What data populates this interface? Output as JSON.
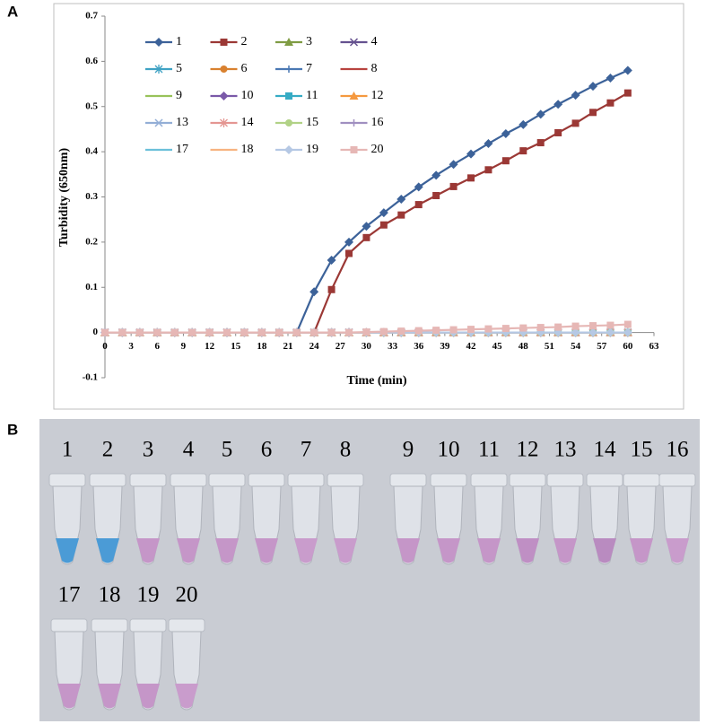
{
  "chart_data": {
    "type": "line",
    "panel_label": "A",
    "x_label": "Time (min)",
    "y_label": "Turbidity (650nm)",
    "x": [
      0,
      2,
      4,
      6,
      8,
      10,
      12,
      14,
      16,
      18,
      20,
      22,
      24,
      26,
      28,
      30,
      32,
      34,
      36,
      38,
      40,
      42,
      44,
      46,
      48,
      50,
      52,
      54,
      56,
      58,
      60
    ],
    "xlim": [
      0,
      63
    ],
    "xticks": [
      0,
      3,
      6,
      9,
      12,
      15,
      18,
      21,
      24,
      27,
      30,
      33,
      36,
      39,
      42,
      45,
      48,
      51,
      54,
      57,
      60,
      63
    ],
    "ylim": [
      -0.1,
      0.7
    ],
    "yticks": [
      -0.1,
      0,
      0.1,
      0.2,
      0.3,
      0.4,
      0.5,
      0.6,
      0.7
    ],
    "series": [
      {
        "name": "1",
        "color": "#3c6299",
        "marker": "diamond",
        "values": [
          0,
          0,
          0,
          0,
          0,
          0,
          0,
          0,
          0,
          0,
          0,
          0,
          0.09,
          0.16,
          0.2,
          0.235,
          0.265,
          0.295,
          0.322,
          0.348,
          0.372,
          0.395,
          0.418,
          0.44,
          0.46,
          0.483,
          0.505,
          0.525,
          0.545,
          0.563,
          0.58
        ]
      },
      {
        "name": "2",
        "color": "#9b3835",
        "marker": "square",
        "values": [
          0,
          0,
          0,
          0,
          0,
          0,
          0,
          0,
          0,
          0,
          0,
          0,
          0,
          0.095,
          0.175,
          0.21,
          0.238,
          0.26,
          0.283,
          0.303,
          0.323,
          0.342,
          0.36,
          0.38,
          0.402,
          0.42,
          0.442,
          0.463,
          0.487,
          0.508,
          0.53
        ]
      },
      {
        "name": "3",
        "color": "#7f9c43",
        "marker": "triangle",
        "values": [
          0,
          0,
          0,
          0,
          0,
          0,
          0,
          0,
          0,
          0,
          0,
          0,
          0,
          0,
          0,
          0,
          0,
          0,
          0,
          0,
          0,
          0,
          0,
          0,
          0,
          0,
          0,
          0,
          0,
          0,
          0
        ]
      },
      {
        "name": "4",
        "color": "#65518f",
        "marker": "x",
        "values": [
          0,
          0,
          0,
          0,
          0,
          0,
          0,
          0,
          0,
          0,
          0,
          0,
          0,
          0,
          0,
          0,
          0,
          0,
          0,
          0,
          0,
          0,
          0,
          0,
          0,
          0,
          0,
          0,
          0,
          0,
          0
        ]
      },
      {
        "name": "5",
        "color": "#3fa2c4",
        "marker": "star",
        "values": [
          0,
          0,
          0,
          0,
          0,
          0,
          0,
          0,
          0,
          0,
          0,
          0,
          0,
          0,
          0,
          0,
          0,
          0,
          0,
          0,
          0,
          0,
          0,
          0,
          0,
          0,
          0,
          0,
          0,
          0,
          0
        ]
      },
      {
        "name": "6",
        "color": "#d9812f",
        "marker": "circle",
        "values": [
          0,
          0,
          0,
          0,
          0,
          0,
          0,
          0,
          0,
          0,
          0,
          0,
          0,
          0,
          0,
          0,
          0,
          0,
          0,
          0,
          0,
          0,
          0,
          0,
          0,
          0,
          0,
          0,
          0,
          0,
          0
        ]
      },
      {
        "name": "7",
        "color": "#4a78b3",
        "marker": "plus",
        "values": [
          0,
          0,
          0,
          0,
          0,
          0,
          0,
          0,
          0,
          0,
          0,
          0,
          0,
          0,
          0,
          0,
          0,
          0,
          0,
          0,
          0,
          0,
          0,
          0,
          0,
          0,
          0,
          0,
          0,
          0,
          0
        ]
      },
      {
        "name": "8",
        "color": "#b8433f",
        "marker": "none",
        "values": [
          0,
          0,
          0,
          0,
          0,
          0,
          0,
          0,
          0,
          0,
          0,
          0,
          0,
          0,
          0,
          0,
          0,
          0,
          0,
          0,
          0,
          0,
          0,
          0,
          0,
          0,
          0,
          0,
          0,
          0,
          0
        ]
      },
      {
        "name": "9",
        "color": "#98c25a",
        "marker": "none",
        "values": [
          0,
          0,
          0,
          0,
          0,
          0,
          0,
          0,
          0,
          0,
          0,
          0,
          0,
          0,
          0,
          0,
          0,
          0,
          0,
          0,
          0,
          0,
          0,
          0,
          0,
          0,
          0,
          0,
          0,
          0,
          0
        ]
      },
      {
        "name": "10",
        "color": "#7a59a8",
        "marker": "diamond",
        "values": [
          0,
          0,
          0,
          0,
          0,
          0,
          0,
          0,
          0,
          0,
          0,
          0,
          0,
          0,
          0,
          0,
          0,
          0,
          0,
          0,
          0,
          0,
          0,
          0,
          0,
          0,
          0,
          0,
          0,
          0,
          0
        ]
      },
      {
        "name": "11",
        "color": "#36abc4",
        "marker": "square",
        "values": [
          0,
          0,
          0,
          0,
          0,
          0,
          0,
          0,
          0,
          0,
          0,
          0,
          0,
          0,
          0,
          0,
          0,
          0,
          0,
          0,
          0,
          0,
          0,
          0,
          0,
          0,
          0,
          0,
          0,
          0,
          0
        ]
      },
      {
        "name": "12",
        "color": "#f5993f",
        "marker": "triangle",
        "values": [
          0,
          0,
          0,
          0,
          0,
          0,
          0,
          0,
          0,
          0,
          0,
          0,
          0,
          0,
          0,
          0,
          0,
          0,
          0,
          0,
          0,
          0,
          0,
          0,
          0,
          0,
          0,
          0,
          0,
          0,
          0
        ]
      },
      {
        "name": "13",
        "color": "#93aed6",
        "marker": "x",
        "values": [
          0,
          0,
          0,
          0,
          0,
          0,
          0,
          0,
          0,
          0,
          0,
          0,
          0,
          0,
          0,
          0,
          0,
          0,
          0,
          0,
          0,
          0,
          0,
          0,
          0,
          0,
          0,
          0,
          0,
          0,
          0
        ]
      },
      {
        "name": "14",
        "color": "#e49692",
        "marker": "star",
        "values": [
          0,
          0,
          0,
          0,
          0,
          0,
          0,
          0,
          0,
          0,
          0,
          0,
          0,
          0,
          0,
          0,
          0,
          0,
          0,
          0,
          0,
          0,
          0,
          0,
          0,
          0,
          0,
          0,
          0,
          0,
          0
        ]
      },
      {
        "name": "15",
        "color": "#b1d286",
        "marker": "circle",
        "values": [
          0,
          0,
          0,
          0,
          0,
          0,
          0,
          0,
          0,
          0,
          0,
          0,
          0,
          0,
          0,
          0,
          0,
          0,
          0,
          0,
          0,
          0,
          0,
          0,
          0,
          0,
          0,
          0,
          0,
          0,
          0
        ]
      },
      {
        "name": "16",
        "color": "#a08fc0",
        "marker": "plus",
        "values": [
          0,
          0,
          0,
          0,
          0,
          0,
          0,
          0,
          0,
          0,
          0,
          0,
          0,
          0,
          0,
          0,
          0,
          0,
          0,
          0,
          0,
          0,
          0,
          0,
          0,
          0,
          0,
          0,
          0,
          0,
          0
        ]
      },
      {
        "name": "17",
        "color": "#6cc0da",
        "marker": "none",
        "values": [
          0,
          0,
          0,
          0,
          0,
          0,
          0,
          0,
          0,
          0,
          0,
          0,
          0,
          0,
          0,
          0,
          0,
          0,
          0,
          0,
          0,
          0,
          0,
          0,
          0,
          0,
          0,
          0,
          0,
          0,
          0
        ]
      },
      {
        "name": "18",
        "color": "#f7b381",
        "marker": "none",
        "values": [
          0,
          0,
          0,
          0,
          0,
          0,
          0,
          0,
          0,
          0,
          0,
          0,
          0,
          0,
          0,
          0,
          0,
          0,
          0,
          0,
          0,
          0,
          0,
          0,
          0,
          0,
          0,
          0,
          0,
          0,
          0
        ]
      },
      {
        "name": "19",
        "color": "#b5c8e4",
        "marker": "diamond",
        "values": [
          0,
          0,
          0,
          0,
          0,
          0,
          0,
          0,
          0,
          0,
          0,
          0,
          0,
          0,
          0,
          0,
          0,
          0,
          0,
          0,
          0,
          0,
          0,
          0,
          0,
          0,
          0,
          0,
          0,
          0,
          0
        ]
      },
      {
        "name": "20",
        "color": "#e6b7b5",
        "marker": "square",
        "values": [
          0,
          0,
          0,
          0,
          0,
          0,
          0,
          0,
          0,
          0,
          0,
          0,
          0,
          0,
          0,
          0.001,
          0.002,
          0.003,
          0.004,
          0.005,
          0.006,
          0.007,
          0.008,
          0.009,
          0.01,
          0.011,
          0.012,
          0.014,
          0.015,
          0.016,
          0.018
        ]
      }
    ]
  },
  "photo": {
    "panel_label": "B",
    "tubes": [
      {
        "label": "1",
        "liquid": "#4b9bd6"
      },
      {
        "label": "2",
        "liquid": "#4b9bd6"
      },
      {
        "label": "3",
        "liquid": "#c596c8"
      },
      {
        "label": "4",
        "liquid": "#c596c8"
      },
      {
        "label": "5",
        "liquid": "#c596c8"
      },
      {
        "label": "6",
        "liquid": "#c596c8"
      },
      {
        "label": "7",
        "liquid": "#c99ccc"
      },
      {
        "label": "8",
        "liquid": "#c99ccc"
      },
      {
        "label": "9",
        "liquid": "#c596c8"
      },
      {
        "label": "10",
        "liquid": "#c596c8"
      },
      {
        "label": "11",
        "liquid": "#c596c8"
      },
      {
        "label": "12",
        "liquid": "#bf8fc4"
      },
      {
        "label": "13",
        "liquid": "#c596c8"
      },
      {
        "label": "14",
        "liquid": "#b98bc0"
      },
      {
        "label": "15",
        "liquid": "#c596c8"
      },
      {
        "label": "16",
        "liquid": "#c99ccc"
      },
      {
        "label": "17",
        "liquid": "#c596c8"
      },
      {
        "label": "18",
        "liquid": "#c596c8"
      },
      {
        "label": "19",
        "liquid": "#c596c8"
      },
      {
        "label": "20",
        "liquid": "#c99ccc"
      }
    ]
  }
}
